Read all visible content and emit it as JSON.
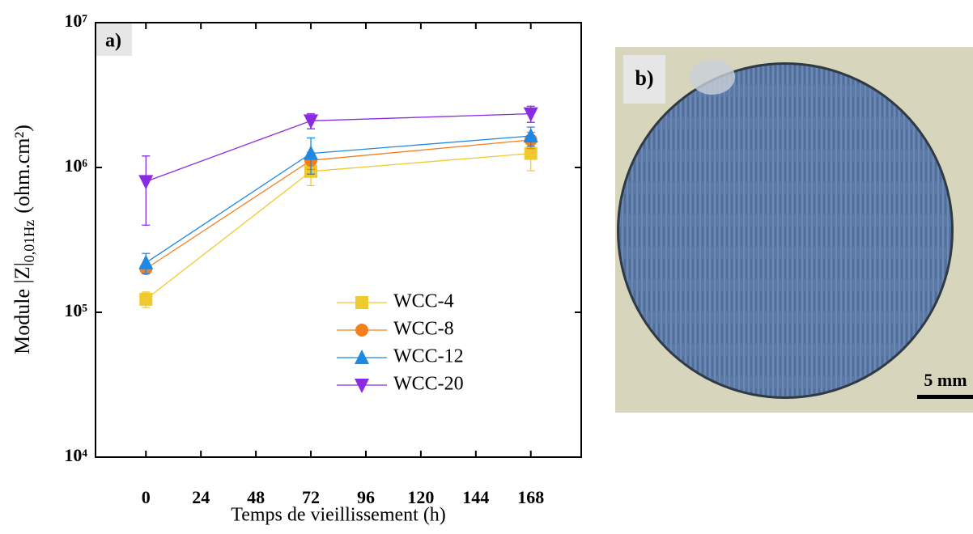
{
  "chart_data": {
    "type": "line",
    "panel_label": "a)",
    "xlabel": "Temps de vieillissement (h)",
    "ylabel": "Module |Z|",
    "ylabel_sub": "0,01Hz",
    "ylabel_unit": "(ohm.cm²)",
    "x": [
      0,
      72,
      168
    ],
    "xlim": [
      -22,
      190
    ],
    "xticks": [
      0,
      24,
      48,
      72,
      96,
      120,
      144,
      168
    ],
    "log_y": true,
    "ylim": [
      10000,
      10000000
    ],
    "yticks": [
      {
        "value": 10000,
        "label": "10⁴"
      },
      {
        "value": 100000,
        "label": "10⁵"
      },
      {
        "value": 1000000,
        "label": "10⁶"
      },
      {
        "value": 10000000,
        "label": "10⁷"
      }
    ],
    "series": [
      {
        "name": "WCC-4",
        "color": "#f0c92e",
        "marker": "square",
        "values": [
          123000,
          940000,
          1250000
        ],
        "errors": [
          15000,
          190000,
          300000
        ]
      },
      {
        "name": "WCC-8",
        "color": "#f47f1f",
        "marker": "circle",
        "values": [
          200000,
          1120000,
          1550000
        ],
        "errors": [
          15000,
          150000,
          200000
        ]
      },
      {
        "name": "WCC-12",
        "color": "#1e88e5",
        "marker": "triangle-up",
        "values": [
          220000,
          1250000,
          1650000
        ],
        "errors": [
          35000,
          350000,
          250000
        ]
      },
      {
        "name": "WCC-20",
        "color": "#8a2be2",
        "marker": "triangle-down",
        "values": [
          800000,
          2100000,
          2350000
        ],
        "errors": [
          400000,
          250000,
          300000
        ]
      }
    ]
  },
  "photo": {
    "label": "b)",
    "scale_bar": "5 mm"
  }
}
